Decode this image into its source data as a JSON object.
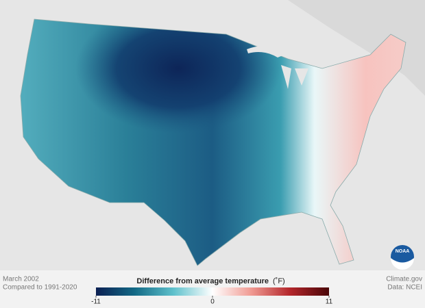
{
  "map": {
    "region": "Contiguous United States"
  },
  "footer": {
    "period": "March 2002",
    "baseline": "Compared to 1991-2020",
    "source": "Climate.gov",
    "data": "Data: NCEI",
    "logo": "NOAA"
  },
  "legend": {
    "title": "Difference from average temperature",
    "unit": "(˚F)",
    "min": -11,
    "max": 11,
    "ticks": [
      -11,
      0,
      11
    ],
    "colors": [
      "#0b1f52",
      "#136a86",
      "#5fc1cc",
      "#ffffff",
      "#f09a92",
      "#b3262b",
      "#4a0608"
    ]
  }
}
